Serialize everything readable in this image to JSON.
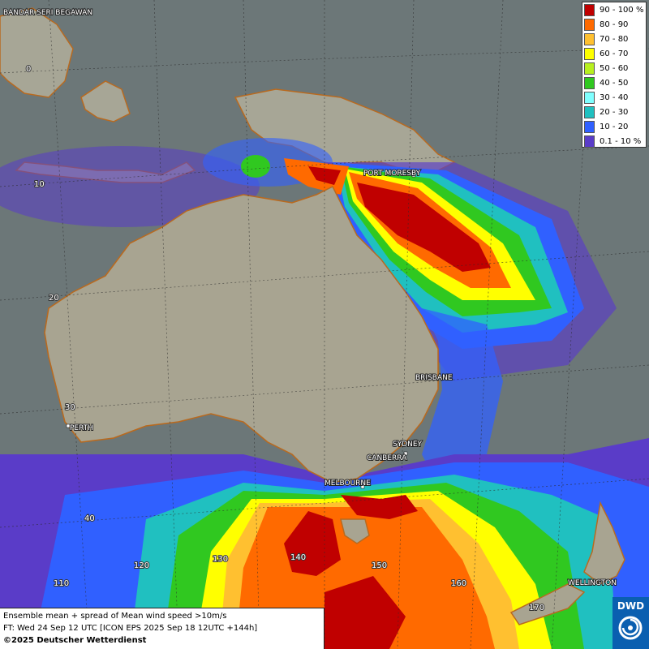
{
  "legend": {
    "items": [
      {
        "label": "90 - 100 %",
        "color": "#c00000"
      },
      {
        "label": "80 - 90",
        "color": "#ff6a00"
      },
      {
        "label": "70 - 80",
        "color": "#ffc030"
      },
      {
        "label": "60 - 70",
        "color": "#ffff00"
      },
      {
        "label": "50 - 60",
        "color": "#b8f020"
      },
      {
        "label": "40 - 50",
        "color": "#30c820"
      },
      {
        "label": "30 - 40",
        "color": "#80ffff"
      },
      {
        "label": "20 - 30",
        "color": "#20c0c0"
      },
      {
        "label": "10 - 20",
        "color": "#3060ff"
      },
      {
        "label": "0.1 - 10 %",
        "color": "#5a3cc8"
      }
    ]
  },
  "cities": {
    "bandar": "BANDAR SERI BEGAWAN",
    "port_moresby": "PORT MORESBY",
    "brisbane": "BRISBANE",
    "perth": "PERTH",
    "sydney": "SYDNEY",
    "canberra": "CANBERRA",
    "melbourne": "MELBOURNE",
    "wellington": "WELLINGTON"
  },
  "grid_labels": {
    "lat_0": "0",
    "lat_10": "10",
    "lat_20": "20",
    "lat_30": "30",
    "lat_40": "40",
    "lon_110": "110",
    "lon_120": "120",
    "lon_130": "130",
    "lon_140": "140",
    "lon_150": "150",
    "lon_160": "160",
    "lon_170": "170"
  },
  "info": {
    "line1": "Ensemble mean + spread of Mean wind speed >10m/s",
    "line2": "FT: Wed 24 Sep 12 UTC [ICON EPS 2025 Sep 18 12UTC +144h]",
    "line3": "©2025 Deutscher Wetterdienst"
  },
  "logo": {
    "text": "DWD",
    "color": "#0a5fb0"
  }
}
